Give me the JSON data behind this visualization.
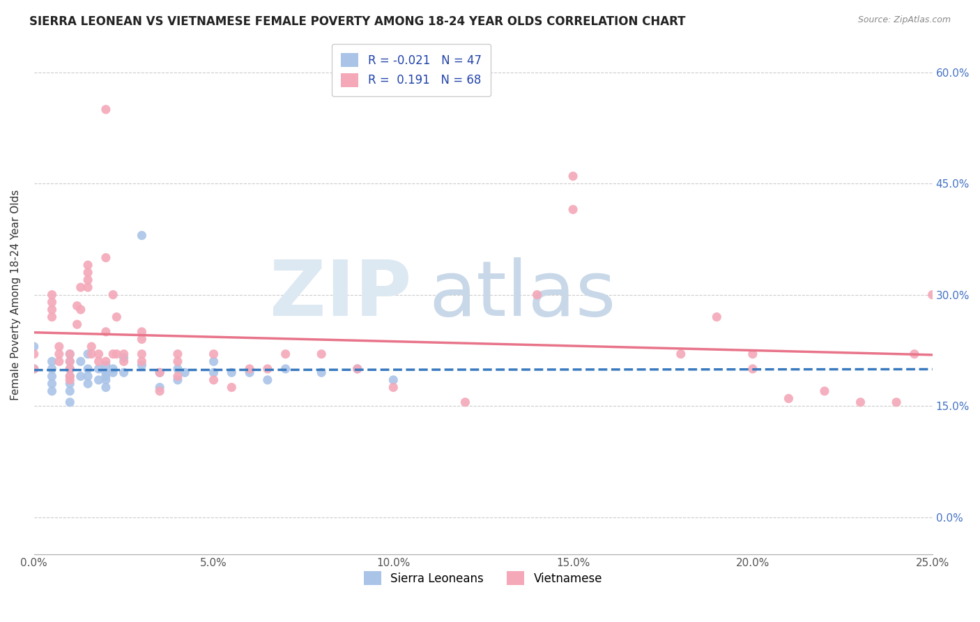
{
  "title": "SIERRA LEONEAN VS VIETNAMESE FEMALE POVERTY AMONG 18-24 YEAR OLDS CORRELATION CHART",
  "source": "Source: ZipAtlas.com",
  "xlabel_ticks": [
    "0.0%",
    "5.0%",
    "10.0%",
    "15.0%",
    "20.0%",
    "25.0%"
  ],
  "xlabel_vals": [
    0.0,
    0.05,
    0.1,
    0.15,
    0.2,
    0.25
  ],
  "ylabel": "Female Poverty Among 18-24 Year Olds",
  "xlim": [
    0.0,
    0.25
  ],
  "ylim": [
    -0.05,
    0.65
  ],
  "yticks": [
    0.0,
    0.15,
    0.3,
    0.45,
    0.6
  ],
  "ytick_labels_right": [
    "0.0%",
    "15.0%",
    "30.0%",
    "45.0%",
    "60.0%"
  ],
  "sierra_color": "#aac4e8",
  "viet_color": "#f4a8b8",
  "sierra_line_color": "#3a7abf",
  "viet_line_color": "#e8748a",
  "sierra_R": -0.021,
  "sierra_N": 47,
  "viet_R": 0.191,
  "viet_N": 68,
  "sierra_points_x": [
    0.0,
    0.0,
    0.005,
    0.005,
    0.005,
    0.005,
    0.005,
    0.01,
    0.01,
    0.01,
    0.01,
    0.01,
    0.01,
    0.01,
    0.013,
    0.013,
    0.015,
    0.015,
    0.015,
    0.015,
    0.018,
    0.018,
    0.02,
    0.02,
    0.02,
    0.02,
    0.02,
    0.022,
    0.022,
    0.025,
    0.025,
    0.03,
    0.03,
    0.035,
    0.035,
    0.04,
    0.04,
    0.042,
    0.05,
    0.05,
    0.055,
    0.06,
    0.065,
    0.07,
    0.08,
    0.09,
    0.1
  ],
  "sierra_points_y": [
    0.2,
    0.23,
    0.21,
    0.2,
    0.19,
    0.18,
    0.17,
    0.22,
    0.21,
    0.2,
    0.19,
    0.18,
    0.17,
    0.155,
    0.21,
    0.19,
    0.22,
    0.2,
    0.19,
    0.18,
    0.2,
    0.185,
    0.205,
    0.195,
    0.19,
    0.185,
    0.175,
    0.2,
    0.195,
    0.215,
    0.195,
    0.38,
    0.205,
    0.195,
    0.175,
    0.2,
    0.185,
    0.195,
    0.21,
    0.195,
    0.195,
    0.195,
    0.185,
    0.2,
    0.195,
    0.2,
    0.185
  ],
  "viet_points_x": [
    0.0,
    0.0,
    0.005,
    0.005,
    0.005,
    0.005,
    0.007,
    0.007,
    0.007,
    0.01,
    0.01,
    0.01,
    0.01,
    0.01,
    0.012,
    0.012,
    0.013,
    0.013,
    0.015,
    0.015,
    0.015,
    0.015,
    0.016,
    0.016,
    0.018,
    0.018,
    0.02,
    0.02,
    0.02,
    0.02,
    0.022,
    0.022,
    0.023,
    0.023,
    0.025,
    0.025,
    0.03,
    0.03,
    0.03,
    0.03,
    0.035,
    0.035,
    0.04,
    0.04,
    0.04,
    0.05,
    0.05,
    0.055,
    0.06,
    0.065,
    0.07,
    0.08,
    0.09,
    0.1,
    0.12,
    0.14,
    0.15,
    0.15,
    0.18,
    0.19,
    0.2,
    0.2,
    0.21,
    0.22,
    0.23,
    0.24,
    0.245,
    0.25
  ],
  "viet_points_y": [
    0.22,
    0.2,
    0.3,
    0.29,
    0.28,
    0.27,
    0.23,
    0.22,
    0.21,
    0.22,
    0.21,
    0.2,
    0.19,
    0.185,
    0.285,
    0.26,
    0.31,
    0.28,
    0.34,
    0.33,
    0.32,
    0.31,
    0.23,
    0.22,
    0.22,
    0.21,
    0.55,
    0.35,
    0.25,
    0.21,
    0.3,
    0.22,
    0.27,
    0.22,
    0.22,
    0.21,
    0.25,
    0.24,
    0.22,
    0.21,
    0.195,
    0.17,
    0.22,
    0.21,
    0.19,
    0.22,
    0.185,
    0.175,
    0.2,
    0.2,
    0.22,
    0.22,
    0.2,
    0.175,
    0.155,
    0.3,
    0.46,
    0.415,
    0.22,
    0.27,
    0.22,
    0.2,
    0.16,
    0.17,
    0.155,
    0.155,
    0.22,
    0.3
  ]
}
